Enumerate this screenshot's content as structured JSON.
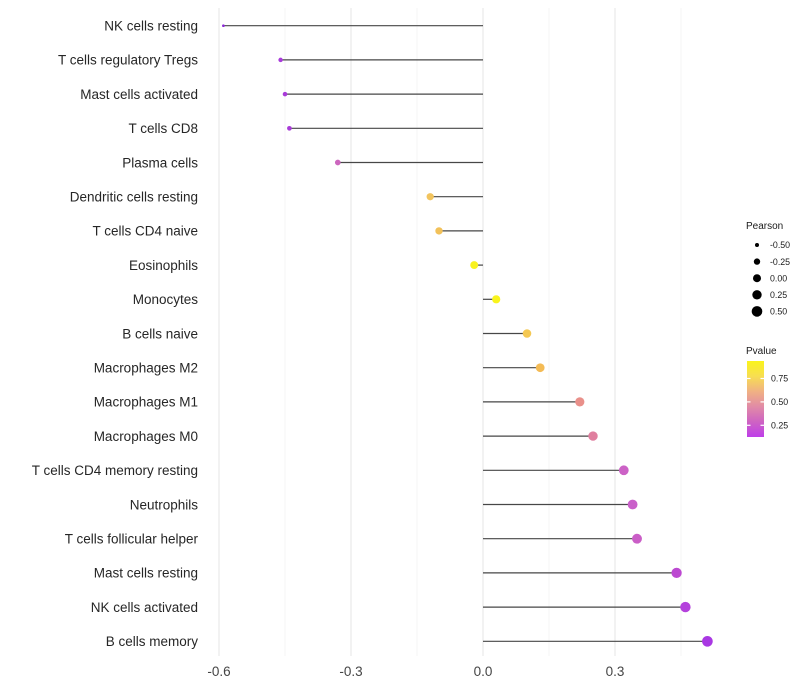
{
  "chart_data": {
    "type": "scatter",
    "subtype": "horizontal-lollipop",
    "title": "",
    "xlabel": "",
    "ylabel": "",
    "xlim": [
      -0.68,
      0.58
    ],
    "grid": "vertical-only",
    "x_ticks": {
      "values": [
        -0.6,
        -0.3,
        0.0,
        0.3
      ],
      "labels": [
        "-0.6",
        "-0.3",
        "0.0",
        "0.3"
      ]
    },
    "x_minor_ticks": [
      -0.45,
      -0.15,
      0.15,
      0.45
    ],
    "rows": [
      {
        "label": "NK cells resting",
        "pearson": -0.59,
        "dot_color": "#8E2BD8"
      },
      {
        "label": "T cells regulatory  Tregs",
        "pearson": -0.46,
        "dot_color": "#A93BDB"
      },
      {
        "label": "Mast cells activated",
        "pearson": -0.45,
        "dot_color": "#A93BD9"
      },
      {
        "label": "T cells CD8",
        "pearson": -0.44,
        "dot_color": "#A83BD8"
      },
      {
        "label": "Plasma cells",
        "pearson": -0.33,
        "dot_color": "#CC66BE"
      },
      {
        "label": "Dendritic cells resting",
        "pearson": -0.12,
        "dot_color": "#F2C45E"
      },
      {
        "label": "T cells CD4 naive",
        "pearson": -0.1,
        "dot_color": "#F2C159"
      },
      {
        "label": "Eosinophils",
        "pearson": -0.02,
        "dot_color": "#F8F220"
      },
      {
        "label": "Monocytes",
        "pearson": 0.03,
        "dot_color": "#F9F41C"
      },
      {
        "label": "B cells naive",
        "pearson": 0.1,
        "dot_color": "#F4C853"
      },
      {
        "label": "Macrophages M2",
        "pearson": 0.13,
        "dot_color": "#F4BB55"
      },
      {
        "label": "Macrophages M1",
        "pearson": 0.22,
        "dot_color": "#E9908A"
      },
      {
        "label": "Macrophages M0",
        "pearson": 0.25,
        "dot_color": "#E07F9F"
      },
      {
        "label": "T cells CD4 memory resting",
        "pearson": 0.32,
        "dot_color": "#CC62C6"
      },
      {
        "label": "Neutrophils",
        "pearson": 0.34,
        "dot_color": "#C960C9"
      },
      {
        "label": "T cells follicular helper",
        "pearson": 0.35,
        "dot_color": "#CA5EC7"
      },
      {
        "label": "Mast cells resting",
        "pearson": 0.44,
        "dot_color": "#BC49D1"
      },
      {
        "label": "NK cells activated",
        "pearson": 0.46,
        "dot_color": "#B441DC"
      },
      {
        "label": "B cells memory",
        "pearson": 0.51,
        "dot_color": "#A938E3"
      }
    ],
    "legend_size": {
      "title": "Pearson",
      "entries": [
        {
          "value": -0.5,
          "label": "-0.50"
        },
        {
          "value": -0.25,
          "label": "-0.25"
        },
        {
          "value": 0.0,
          "label": "0.00"
        },
        {
          "value": 0.25,
          "label": "0.25"
        },
        {
          "value": 0.5,
          "label": "0.50"
        }
      ],
      "dot_color": "#000000"
    },
    "legend_color": {
      "title": "Pvalue",
      "tick_labels": [
        "0.75",
        "0.50",
        "0.25"
      ],
      "gradient_top_to_bottom": [
        "#FAF41B",
        "#F7DE52",
        "#F0B183",
        "#E18BA6",
        "#CE63C3",
        "#BF3EE9"
      ]
    },
    "colors": {
      "stem": "#474747",
      "grid_major": "#E7E7E7",
      "grid_minor": "#F4F4F4",
      "axis_text": "#454545",
      "category_text": "#262626",
      "legend_text": "#1a1a1a"
    }
  }
}
